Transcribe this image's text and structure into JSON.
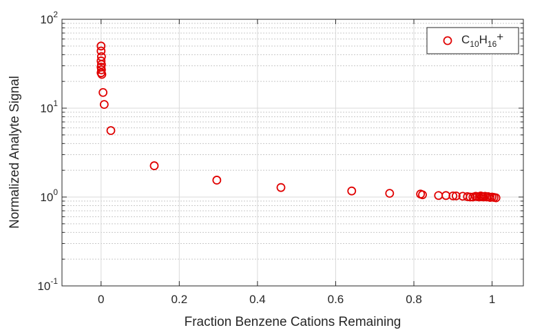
{
  "chart_data": {
    "type": "scatter",
    "xlabel": "Fraction Benzene Cations Remaining",
    "ylabel": "Normalized Analyte Signal",
    "xlim": [
      -0.1,
      1.08
    ],
    "ylim": [
      0.1,
      100
    ],
    "y_scale": "log",
    "grid": true,
    "legend_position": "top-right",
    "x_ticks": [
      {
        "value": 0,
        "label": "0"
      },
      {
        "value": 0.2,
        "label": "0.2"
      },
      {
        "value": 0.4,
        "label": "0.4"
      },
      {
        "value": 0.6,
        "label": "0.6"
      },
      {
        "value": 0.8,
        "label": "0.8"
      },
      {
        "value": 1,
        "label": "1"
      }
    ],
    "y_ticks": [
      {
        "value": 0.1,
        "base": "10",
        "exp": "-1"
      },
      {
        "value": 1,
        "base": "10",
        "exp": "0"
      },
      {
        "value": 10,
        "base": "10",
        "exp": "1"
      },
      {
        "value": 100,
        "base": "10",
        "exp": "2"
      }
    ],
    "series": [
      {
        "name": "C10H16+",
        "legend": {
          "base": "C",
          "sub1": "10",
          "mid": "H",
          "sub2": "16",
          "end": "+"
        },
        "color": "#e00000",
        "x": [
          0.0,
          0.0,
          0.001,
          0.0,
          0.001,
          0.0,
          0.001,
          0.0,
          0.002,
          0.005,
          0.008,
          0.025,
          0.136,
          0.296,
          0.46,
          0.641,
          0.738,
          0.817,
          0.822,
          0.863,
          0.882,
          0.9,
          0.908,
          0.925,
          0.937,
          0.944,
          0.951,
          0.958,
          0.962,
          0.967,
          0.971,
          0.974,
          0.978,
          0.982,
          0.986,
          0.99,
          0.995,
          1.0,
          1.005,
          1.01
        ],
        "y": [
          50,
          44,
          38,
          34,
          31,
          29,
          27,
          25,
          24,
          15,
          11,
          5.6,
          2.25,
          1.55,
          1.28,
          1.17,
          1.1,
          1.08,
          1.06,
          1.04,
          1.04,
          1.03,
          1.03,
          1.02,
          1.01,
          1.0,
          1.0,
          1.02,
          1.01,
          1.0,
          1.03,
          1.01,
          1.0,
          1.02,
          1.0,
          1.01,
          0.99,
          1.0,
          0.99,
          0.98
        ]
      }
    ]
  }
}
